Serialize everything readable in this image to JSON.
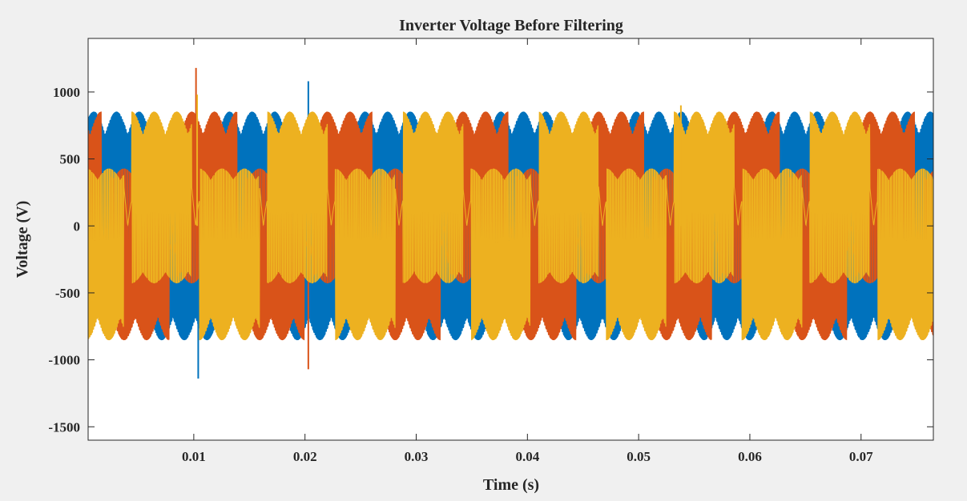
{
  "chart_data": {
    "type": "line",
    "title": "Inverter Voltage Before Filtering",
    "xlabel": "Time (s)",
    "ylabel": "Voltage (V)",
    "xlim": [
      0.0005,
      0.0765
    ],
    "ylim": [
      -1600,
      1400
    ],
    "xticks": [
      0.01,
      0.02,
      0.03,
      0.04,
      0.05,
      0.06,
      0.07
    ],
    "xtick_labels": [
      "0.01",
      "0.02",
      "0.03",
      "0.04",
      "0.05",
      "0.06",
      "0.07"
    ],
    "yticks": [
      -1500,
      -1000,
      -500,
      0,
      500,
      1000
    ],
    "ytick_labels": [
      "-1500",
      "-1000",
      "-500",
      "0",
      "500",
      "1000"
    ],
    "grid": false,
    "legend": "none",
    "description": "Three-phase PWM inverter voltages switching between positive and negative envelopes of about ±850 V; the waveform bursts repeat roughly every 6 ms with large transients near 0.01 s and 0.02 s.",
    "series": [
      {
        "color": "#0072BD",
        "envelope_peak_V": 850,
        "phase_offset_deg": 0,
        "transient_points": [
          {
            "x": 0.0203,
            "y": 1080
          },
          {
            "x": 0.0104,
            "y": -1140
          }
        ]
      },
      {
        "color": "#D95319",
        "envelope_peak_V": 850,
        "phase_offset_deg": 120,
        "transient_points": [
          {
            "x": 0.0102,
            "y": 1180
          },
          {
            "x": 0.0203,
            "y": -1070
          }
        ]
      },
      {
        "color": "#EDB120",
        "envelope_peak_V": 850,
        "phase_offset_deg": 240,
        "transient_points": [
          {
            "x": 0.0538,
            "y": 900
          },
          {
            "x": 0.0103,
            "y": 980
          }
        ]
      }
    ]
  }
}
